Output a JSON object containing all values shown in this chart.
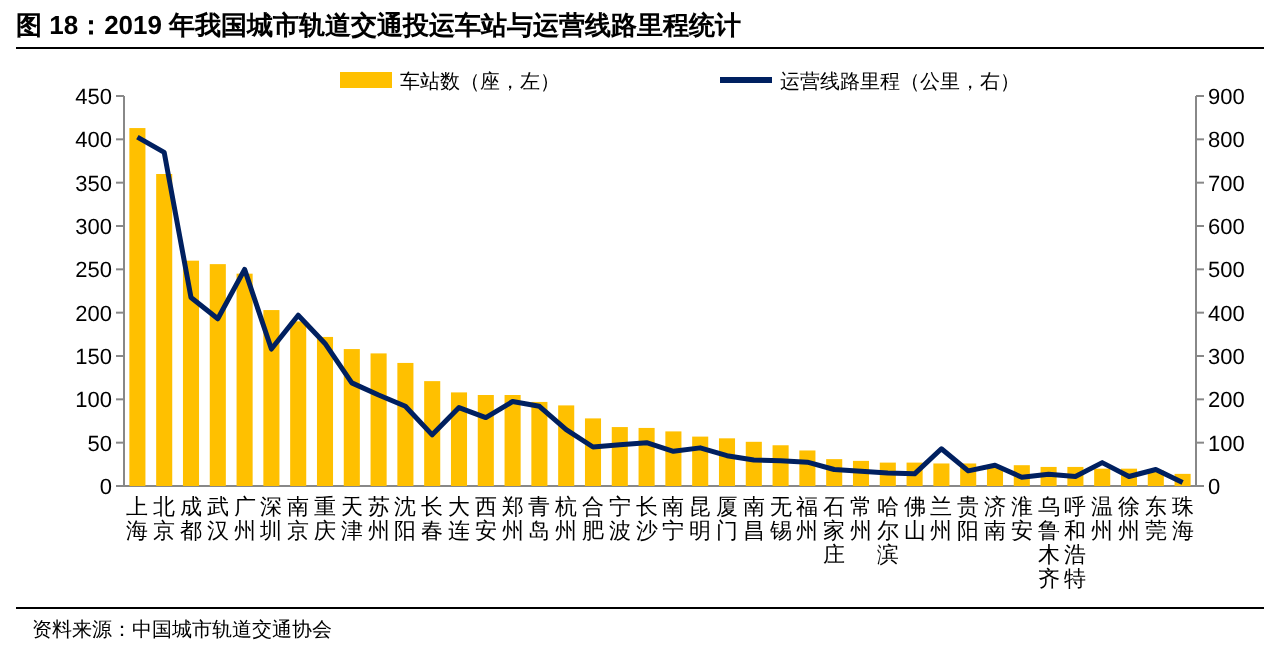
{
  "chart_data": {
    "type": "bar",
    "title": "图 18：2019 年我国城市轨道交通投运车站与运营线路里程统计",
    "categories": [
      "上海",
      "北京",
      "成都",
      "武汉",
      "广州",
      "深圳",
      "南京",
      "重庆",
      "天津",
      "苏州",
      "沈阳",
      "长春",
      "大连",
      "西安",
      "郑州",
      "青岛",
      "杭州",
      "合肥",
      "宁波",
      "长沙",
      "南宁",
      "昆明",
      "厦门",
      "南昌",
      "无锡",
      "福州",
      "石家庄",
      "常州",
      "哈尔滨",
      "佛山",
      "兰州",
      "贵阳",
      "济南",
      "淮安",
      "乌鲁木齐",
      "呼和浩特",
      "温州",
      "徐州",
      "东莞",
      "珠海"
    ],
    "series": [
      {
        "name": "车站数（座，左）",
        "color": "#ffc000",
        "values": [
          413,
          360,
          260,
          256,
          245,
          203,
          190,
          172,
          158,
          153,
          142,
          121,
          108,
          105,
          105,
          97,
          93,
          78,
          68,
          67,
          63,
          57,
          55,
          51,
          47,
          41,
          31,
          29,
          27,
          27,
          26,
          26,
          23,
          24,
          22,
          22,
          20,
          20,
          18,
          14
        ]
      },
      {
        "name": "运营线路里程（公里，右）",
        "type": "line",
        "axis": "y2",
        "color": "#002060",
        "values": [
          805,
          770,
          435,
          386,
          500,
          316,
          394,
          329,
          238,
          210,
          184,
          118,
          181,
          158,
          195,
          184,
          130,
          90,
          95,
          100,
          80,
          88,
          70,
          60,
          58,
          55,
          38,
          34,
          30,
          28,
          86,
          35,
          48,
          20,
          27,
          22,
          54,
          22,
          38,
          8
        ]
      }
    ],
    "ylim": [
      0,
      450
    ],
    "yticks": [
      0,
      50,
      100,
      150,
      200,
      250,
      300,
      350,
      400,
      450
    ],
    "y2lim": [
      0,
      900
    ],
    "y2ticks": [
      0,
      100,
      200,
      300,
      400,
      500,
      600,
      700,
      800,
      900
    ],
    "legend": "top",
    "annotations": [
      "资料来源：中国城市轨道交通协会"
    ]
  }
}
